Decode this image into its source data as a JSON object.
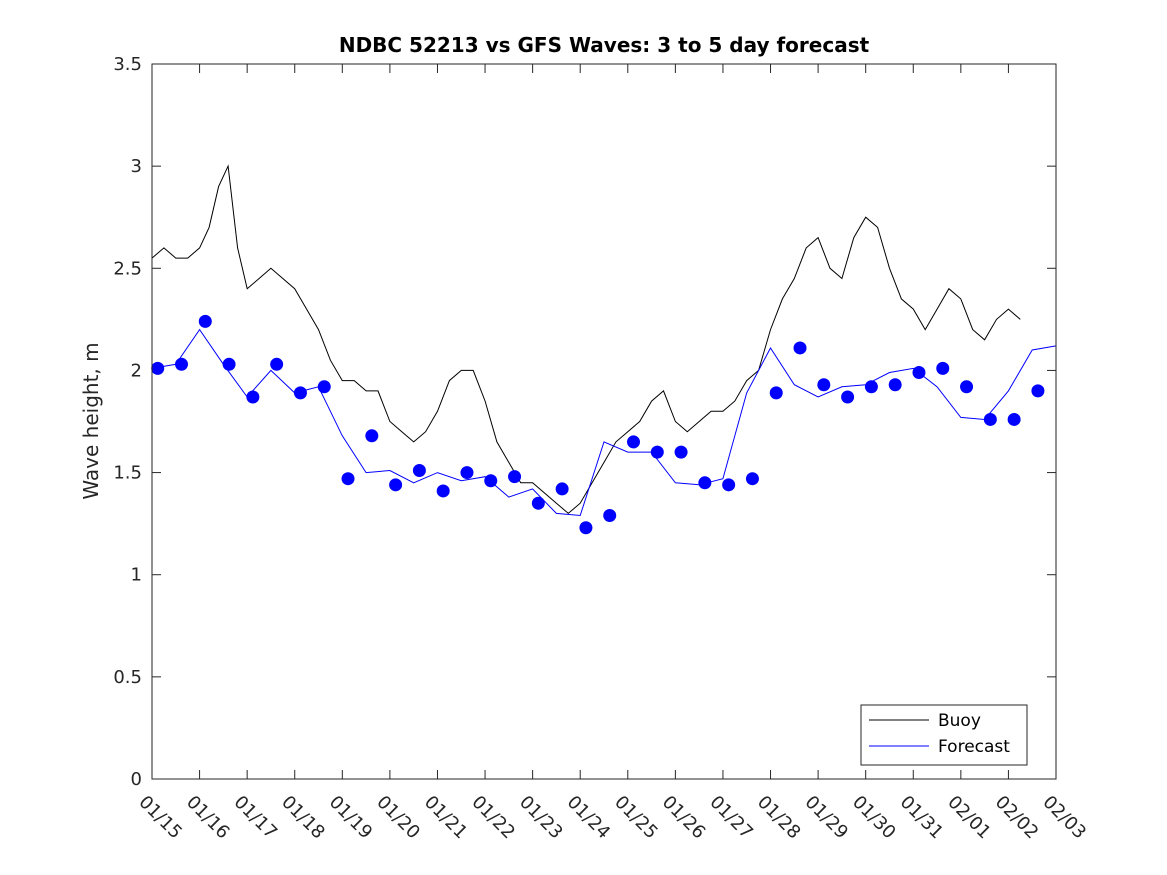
{
  "chart_data": {
    "type": "line",
    "title": "NDBC 52213 vs GFS Waves: 3 to 5 day forecast",
    "xlabel": "",
    "ylabel": "Wave height, m",
    "xlim": [
      0,
      19
    ],
    "ylim": [
      0,
      3.5
    ],
    "x_tick_labels": [
      "01/15",
      "01/16",
      "01/17",
      "01/18",
      "01/19",
      "01/20",
      "01/21",
      "01/22",
      "01/23",
      "01/24",
      "01/25",
      "01/26",
      "01/27",
      "01/28",
      "01/29",
      "01/30",
      "01/31",
      "02/01",
      "02/02",
      "02/03"
    ],
    "y_ticks": [
      0,
      0.5,
      1,
      1.5,
      2,
      2.5,
      3,
      3.5
    ],
    "y_tick_labels": [
      "0",
      "0.5",
      "1",
      "1.5",
      "2",
      "2.5",
      "3",
      "3.5"
    ],
    "legend": {
      "location": "bottom-right",
      "entries": [
        {
          "label": "Buoy",
          "color": "#000000"
        },
        {
          "label": "Forecast",
          "color": "#0000ff"
        }
      ]
    },
    "series": [
      {
        "name": "Buoy",
        "color": "#000000",
        "x": [
          0,
          0.25,
          0.5,
          0.75,
          1,
          1.2,
          1.4,
          1.6,
          1.8,
          2,
          2.25,
          2.5,
          2.75,
          3,
          3.25,
          3.5,
          3.75,
          4,
          4.25,
          4.5,
          4.75,
          5,
          5.25,
          5.5,
          5.75,
          6,
          6.25,
          6.5,
          6.75,
          7,
          7.25,
          7.5,
          7.75,
          8,
          8.25,
          8.5,
          8.75,
          9,
          9.25,
          9.5,
          9.75,
          10,
          10.25,
          10.5,
          10.75,
          11,
          11.25,
          11.5,
          11.75,
          12,
          12.25,
          12.5,
          12.75,
          13,
          13.25,
          13.5,
          13.75,
          14,
          14.25,
          14.5,
          14.75,
          15,
          15.25,
          15.5,
          15.75,
          16,
          16.25,
          16.5,
          16.75,
          17,
          17.25,
          17.5,
          17.75,
          18,
          18.25
        ],
        "values": [
          2.55,
          2.6,
          2.55,
          2.55,
          2.6,
          2.7,
          2.9,
          3.0,
          2.6,
          2.4,
          2.45,
          2.5,
          2.45,
          2.4,
          2.3,
          2.2,
          2.05,
          1.95,
          1.95,
          1.9,
          1.9,
          1.75,
          1.7,
          1.65,
          1.7,
          1.8,
          1.95,
          2.0,
          2.0,
          1.85,
          1.65,
          1.55,
          1.45,
          1.45,
          1.4,
          1.35,
          1.3,
          1.35,
          1.45,
          1.55,
          1.65,
          1.7,
          1.75,
          1.85,
          1.9,
          1.75,
          1.7,
          1.75,
          1.8,
          1.8,
          1.85,
          1.95,
          2.0,
          2.2,
          2.35,
          2.45,
          2.6,
          2.65,
          2.5,
          2.45,
          2.65,
          2.75,
          2.7,
          2.5,
          2.35,
          2.3,
          2.2,
          2.3,
          2.4,
          2.35,
          2.2,
          2.15,
          2.25,
          2.3,
          2.25
        ]
      },
      {
        "name": "Forecast",
        "color": "#0000ff",
        "x": [
          0,
          0.5,
          1,
          1.5,
          2,
          2.5,
          3,
          3.5,
          4,
          4.5,
          5,
          5.5,
          6,
          6.5,
          7,
          7.5,
          8,
          8.5,
          9,
          9.5,
          10,
          10.5,
          11,
          11.5,
          12,
          12.5,
          13,
          13.5,
          14,
          14.5,
          15,
          15.5,
          16,
          16.5,
          17,
          17.5,
          18,
          18.5,
          19
        ],
        "values": [
          2.01,
          2.03,
          2.2,
          2.03,
          1.87,
          2.0,
          1.89,
          1.92,
          1.68,
          1.5,
          1.51,
          1.45,
          1.5,
          1.46,
          1.48,
          1.38,
          1.42,
          1.3,
          1.29,
          1.65,
          1.6,
          1.6,
          1.45,
          1.44,
          1.47,
          1.89,
          2.11,
          1.93,
          1.87,
          1.92,
          1.93,
          1.99,
          2.01,
          1.92,
          1.77,
          1.76,
          1.9,
          2.1,
          2.12
        ]
      }
    ],
    "forecast_points": {
      "name": "Forecast points",
      "color": "#0000ff",
      "x": [
        0.12,
        0.62,
        1.12,
        1.62,
        2.12,
        2.62,
        3.12,
        3.62,
        4.12,
        4.62,
        5.12,
        5.62,
        6.12,
        6.62,
        7.12,
        7.62,
        8.12,
        8.62,
        9.12,
        9.62,
        10.12,
        10.62,
        11.12,
        11.62,
        12.12,
        12.62,
        13.12,
        13.62,
        14.12,
        14.62,
        15.12,
        15.62,
        16.12,
        16.62,
        17.12,
        17.62,
        18.12,
        18.62
      ],
      "values": [
        2.01,
        2.03,
        2.24,
        2.03,
        1.87,
        2.03,
        1.89,
        1.92,
        1.47,
        1.68,
        1.44,
        1.51,
        1.41,
        1.5,
        1.46,
        1.48,
        1.35,
        1.42,
        1.23,
        1.29,
        1.65,
        1.6,
        1.6,
        1.45,
        1.44,
        1.47,
        1.89,
        2.11,
        1.93,
        1.87,
        1.92,
        1.93,
        1.99,
        2.01,
        1.92,
        1.76,
        1.76,
        1.9
      ]
    }
  }
}
